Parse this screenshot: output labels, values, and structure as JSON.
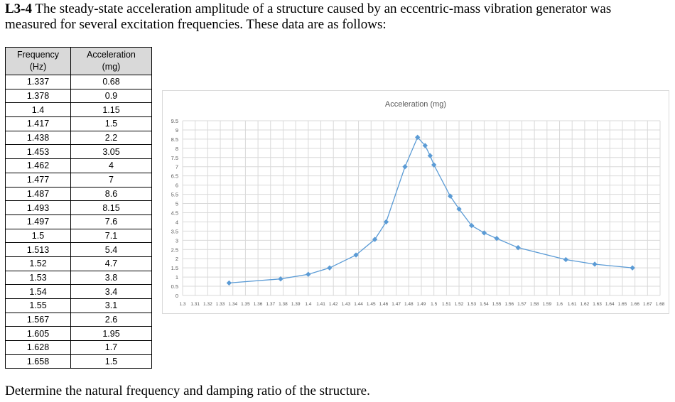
{
  "problem": {
    "number": "L3-4",
    "text": "The steady-state acceleration amplitude of a structure caused by an eccentric-mass vibration generator was measured for several excitation frequencies. These data are as follows:"
  },
  "table": {
    "col1_header_l1": "Frequency",
    "col1_header_l2": "(Hz)",
    "col2_header_l1": "Acceleration",
    "col2_header_l2": "(mg)",
    "rows": [
      [
        "1.337",
        "0.68"
      ],
      [
        "1.378",
        "0.9"
      ],
      [
        "1.4",
        "1.15"
      ],
      [
        "1.417",
        "1.5"
      ],
      [
        "1.438",
        "2.2"
      ],
      [
        "1.453",
        "3.05"
      ],
      [
        "1.462",
        "4"
      ],
      [
        "1.477",
        "7"
      ],
      [
        "1.487",
        "8.6"
      ],
      [
        "1.493",
        "8.15"
      ],
      [
        "1.497",
        "7.6"
      ],
      [
        "1.5",
        "7.1"
      ],
      [
        "1.513",
        "5.4"
      ],
      [
        "1.52",
        "4.7"
      ],
      [
        "1.53",
        "3.8"
      ],
      [
        "1.54",
        "3.4"
      ],
      [
        "1.55",
        "3.1"
      ],
      [
        "1.567",
        "2.6"
      ],
      [
        "1.605",
        "1.95"
      ],
      [
        "1.628",
        "1.7"
      ],
      [
        "1.658",
        "1.5"
      ]
    ]
  },
  "question": "Determine the natural frequency and damping ratio of the structure.",
  "chart_data": {
    "type": "scatter",
    "title": "Acceleration (mg)",
    "x": [
      1.337,
      1.378,
      1.4,
      1.417,
      1.438,
      1.453,
      1.462,
      1.477,
      1.487,
      1.493,
      1.497,
      1.5,
      1.513,
      1.52,
      1.53,
      1.54,
      1.55,
      1.567,
      1.605,
      1.628,
      1.658
    ],
    "y": [
      0.68,
      0.9,
      1.15,
      1.5,
      2.2,
      3.05,
      4,
      7,
      8.6,
      8.15,
      7.6,
      7.1,
      5.4,
      4.7,
      3.8,
      3.4,
      3.1,
      2.6,
      1.95,
      1.7,
      1.5
    ],
    "xlim": [
      1.3,
      1.68
    ],
    "ylim": [
      0,
      9.5
    ],
    "xticks": [
      "1.3",
      "1.31",
      "1.32",
      "1.33",
      "1.34",
      "1.35",
      "1.36",
      "1.37",
      "1.38",
      "1.39",
      "1.4",
      "1.41",
      "1.42",
      "1.43",
      "1.44",
      "1.45",
      "1.46",
      "1.47",
      "1.48",
      "1.49",
      "1.5",
      "1.51",
      "1.52",
      "1.53",
      "1.54",
      "1.55",
      "1.56",
      "1.57",
      "1.58",
      "1.59",
      "1.6",
      "1.61",
      "1.62",
      "1.63",
      "1.64",
      "1.65",
      "1.66",
      "1.67",
      "1.68"
    ],
    "yticks": [
      "0",
      "0.5",
      "1",
      "1.5",
      "2",
      "2.5",
      "3",
      "3.5",
      "4",
      "4.5",
      "5",
      "5.5",
      "6",
      "6.5",
      "7",
      "7.5",
      "8",
      "8.5",
      "9",
      "9.5"
    ],
    "grid": true,
    "line_color": "#5b9bd5",
    "grid_color": "#d9d9d9"
  }
}
